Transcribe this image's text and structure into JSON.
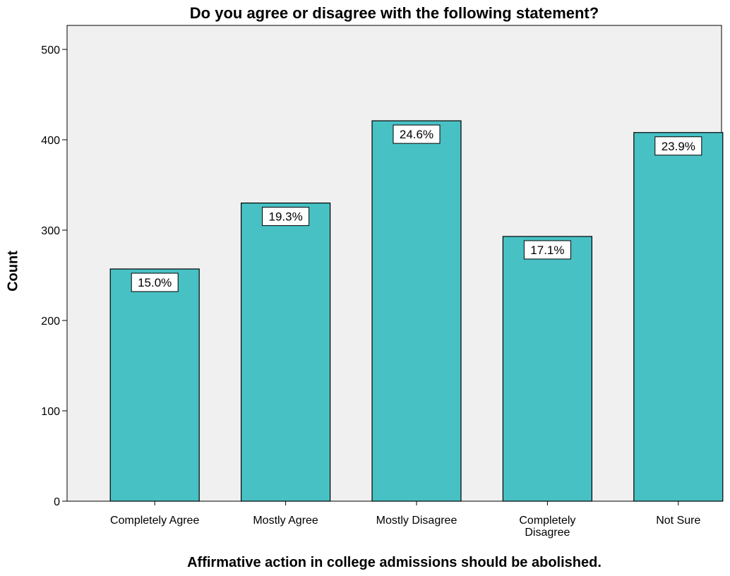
{
  "chart_data": {
    "type": "bar",
    "title": "Do you agree or disagree with the following statement?",
    "xlabel": "Affirmative action in college admissions should be abolished.",
    "ylabel": "Count",
    "categories": [
      [
        "Completely Agree"
      ],
      [
        "Mostly Agree"
      ],
      [
        "Mostly Disagree"
      ],
      [
        "Completely",
        "Disagree"
      ],
      [
        "Not Sure"
      ]
    ],
    "values": [
      257,
      330,
      421,
      293,
      408
    ],
    "data_labels": [
      "15.0%",
      "19.3%",
      "24.6%",
      "17.1%",
      "23.9%"
    ],
    "ylim": [
      0,
      500
    ],
    "yticks": [
      "0",
      "100",
      "200",
      "300",
      "400",
      "500"
    ],
    "grid": false,
    "legend": "none",
    "colors": {
      "bar": "#48c1c5",
      "plot_background": "#f0f0f0",
      "outline": "#000000"
    }
  }
}
